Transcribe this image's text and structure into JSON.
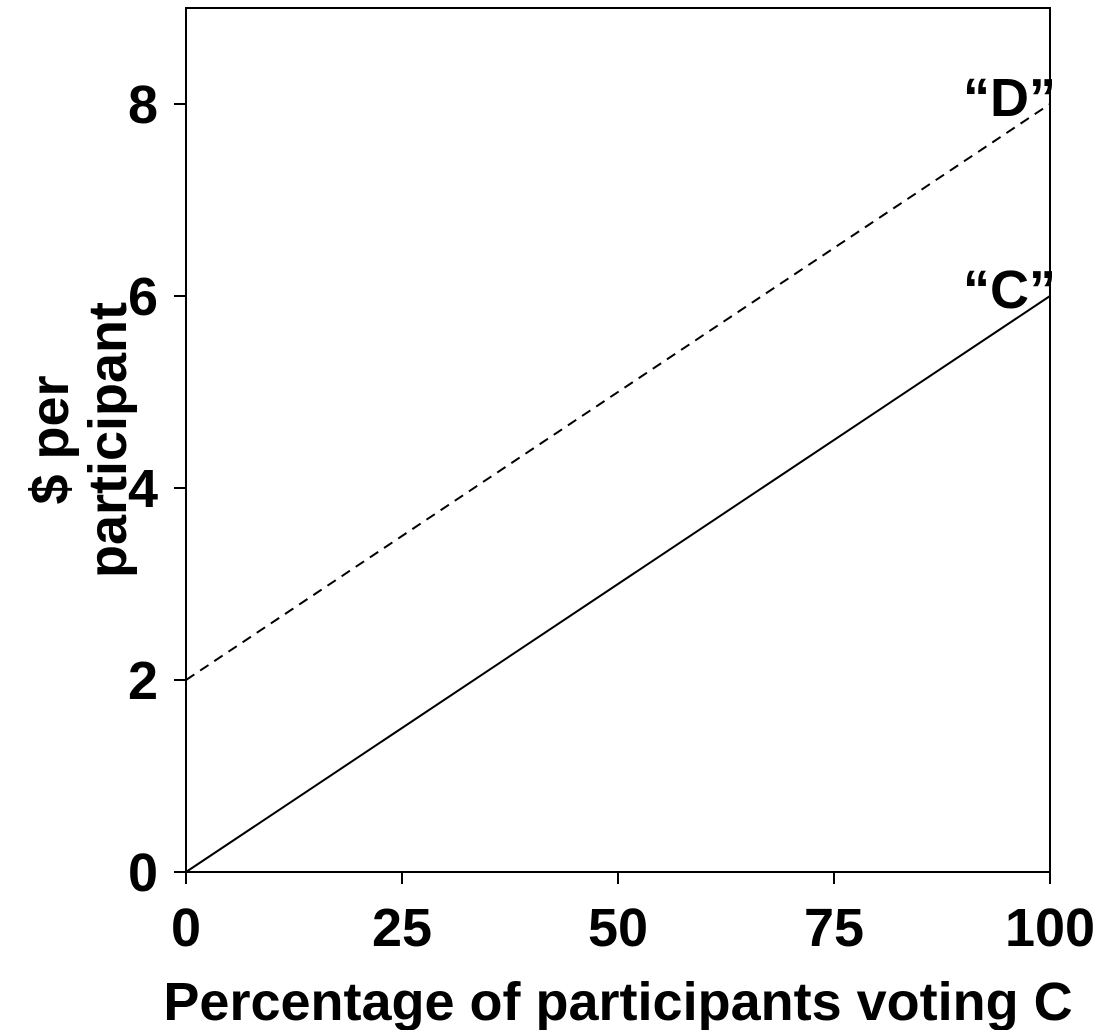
{
  "chart_data": {
    "type": "line",
    "title": "",
    "xlabel": "Percentage of participants voting C",
    "ylabel_lines": [
      "$ per",
      "participant"
    ],
    "xlim": [
      0,
      100
    ],
    "ylim": [
      0,
      9
    ],
    "xticks": [
      0,
      25,
      50,
      75,
      100
    ],
    "yticks": [
      0,
      2,
      4,
      6,
      8
    ],
    "xtick_labels": [
      "0",
      "25",
      "50",
      "75",
      "100"
    ],
    "ytick_labels": [
      "0",
      "2",
      "4",
      "6",
      "8"
    ],
    "grid": false,
    "legend": "none",
    "series": [
      {
        "name": "“D”",
        "style": "dashed",
        "color": "#000000",
        "x": [
          0,
          100
        ],
        "values": [
          2,
          8
        ]
      },
      {
        "name": "“C”",
        "style": "solid",
        "color": "#000000",
        "x": [
          0,
          100
        ],
        "values": [
          0,
          6
        ]
      }
    ]
  }
}
